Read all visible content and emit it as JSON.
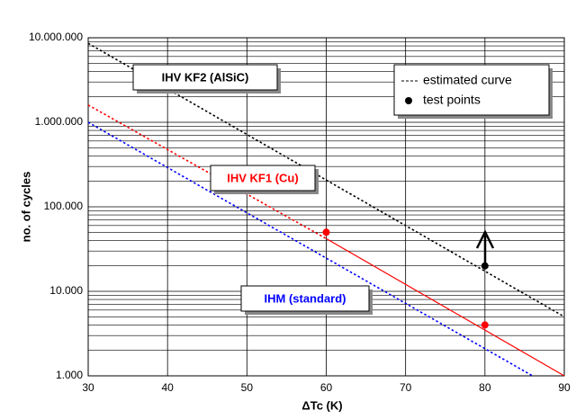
{
  "chart_data": {
    "type": "line",
    "x_label": "ΔTc (K)",
    "y_label": "no. of cycles",
    "log_y": true,
    "grid": true,
    "xlim": [
      30,
      90
    ],
    "xticks": [
      30,
      40,
      50,
      60,
      70,
      80,
      90
    ],
    "ylim": [
      1000,
      10000000
    ],
    "yticks": [
      {
        "value": 1000,
        "label": "1.000"
      },
      {
        "value": 10000,
        "label": "10.000"
      },
      {
        "value": 100000,
        "label": "100.000"
      },
      {
        "value": 1000000,
        "label": "1.000.000"
      },
      {
        "value": 10000000,
        "label": "10.000.000"
      }
    ],
    "yminor": [
      2000,
      3000,
      4000,
      5000,
      6000,
      7000,
      8000,
      9000,
      20000,
      30000,
      40000,
      50000,
      60000,
      70000,
      80000,
      90000,
      200000,
      300000,
      400000,
      500000,
      600000,
      700000,
      800000,
      900000,
      2000000,
      3000000,
      4000000,
      5000000,
      6000000,
      7000000,
      8000000,
      9000000
    ],
    "series": [
      {
        "color": "#000000",
        "dashed": true,
        "x": [
          30,
          90
        ],
        "values": [
          8600000,
          5000
        ]
      },
      {
        "color": "#ff0000",
        "dashed": true,
        "x": [
          30,
          60
        ],
        "values": [
          1600000,
          42000
        ]
      },
      {
        "color": "#ff0000",
        "dashed": false,
        "x": [
          60,
          90
        ],
        "values": [
          42000,
          1000
        ]
      },
      {
        "color": "#0000ff",
        "dashed": true,
        "x": [
          30,
          86
        ],
        "values": [
          1000000,
          1000
        ]
      }
    ],
    "points": {
      "x": [
        60,
        80,
        80
      ],
      "values": [
        50000,
        4000,
        20000
      ],
      "colors": [
        "#ff0000",
        "#ff0000",
        "#000000"
      ]
    },
    "annotations": [
      {
        "text": "IHV KF2 (AlSiC)",
        "color": "#000000"
      },
      {
        "text": "IHV KF1 (Cu)",
        "color": "#ff0000"
      },
      {
        "text": "IHM (standard)",
        "color": "#0000ff"
      }
    ],
    "legend": [
      {
        "label": "estimated curve",
        "symbol": "dashed"
      },
      {
        "label": "test points",
        "symbol": "dot"
      }
    ]
  }
}
